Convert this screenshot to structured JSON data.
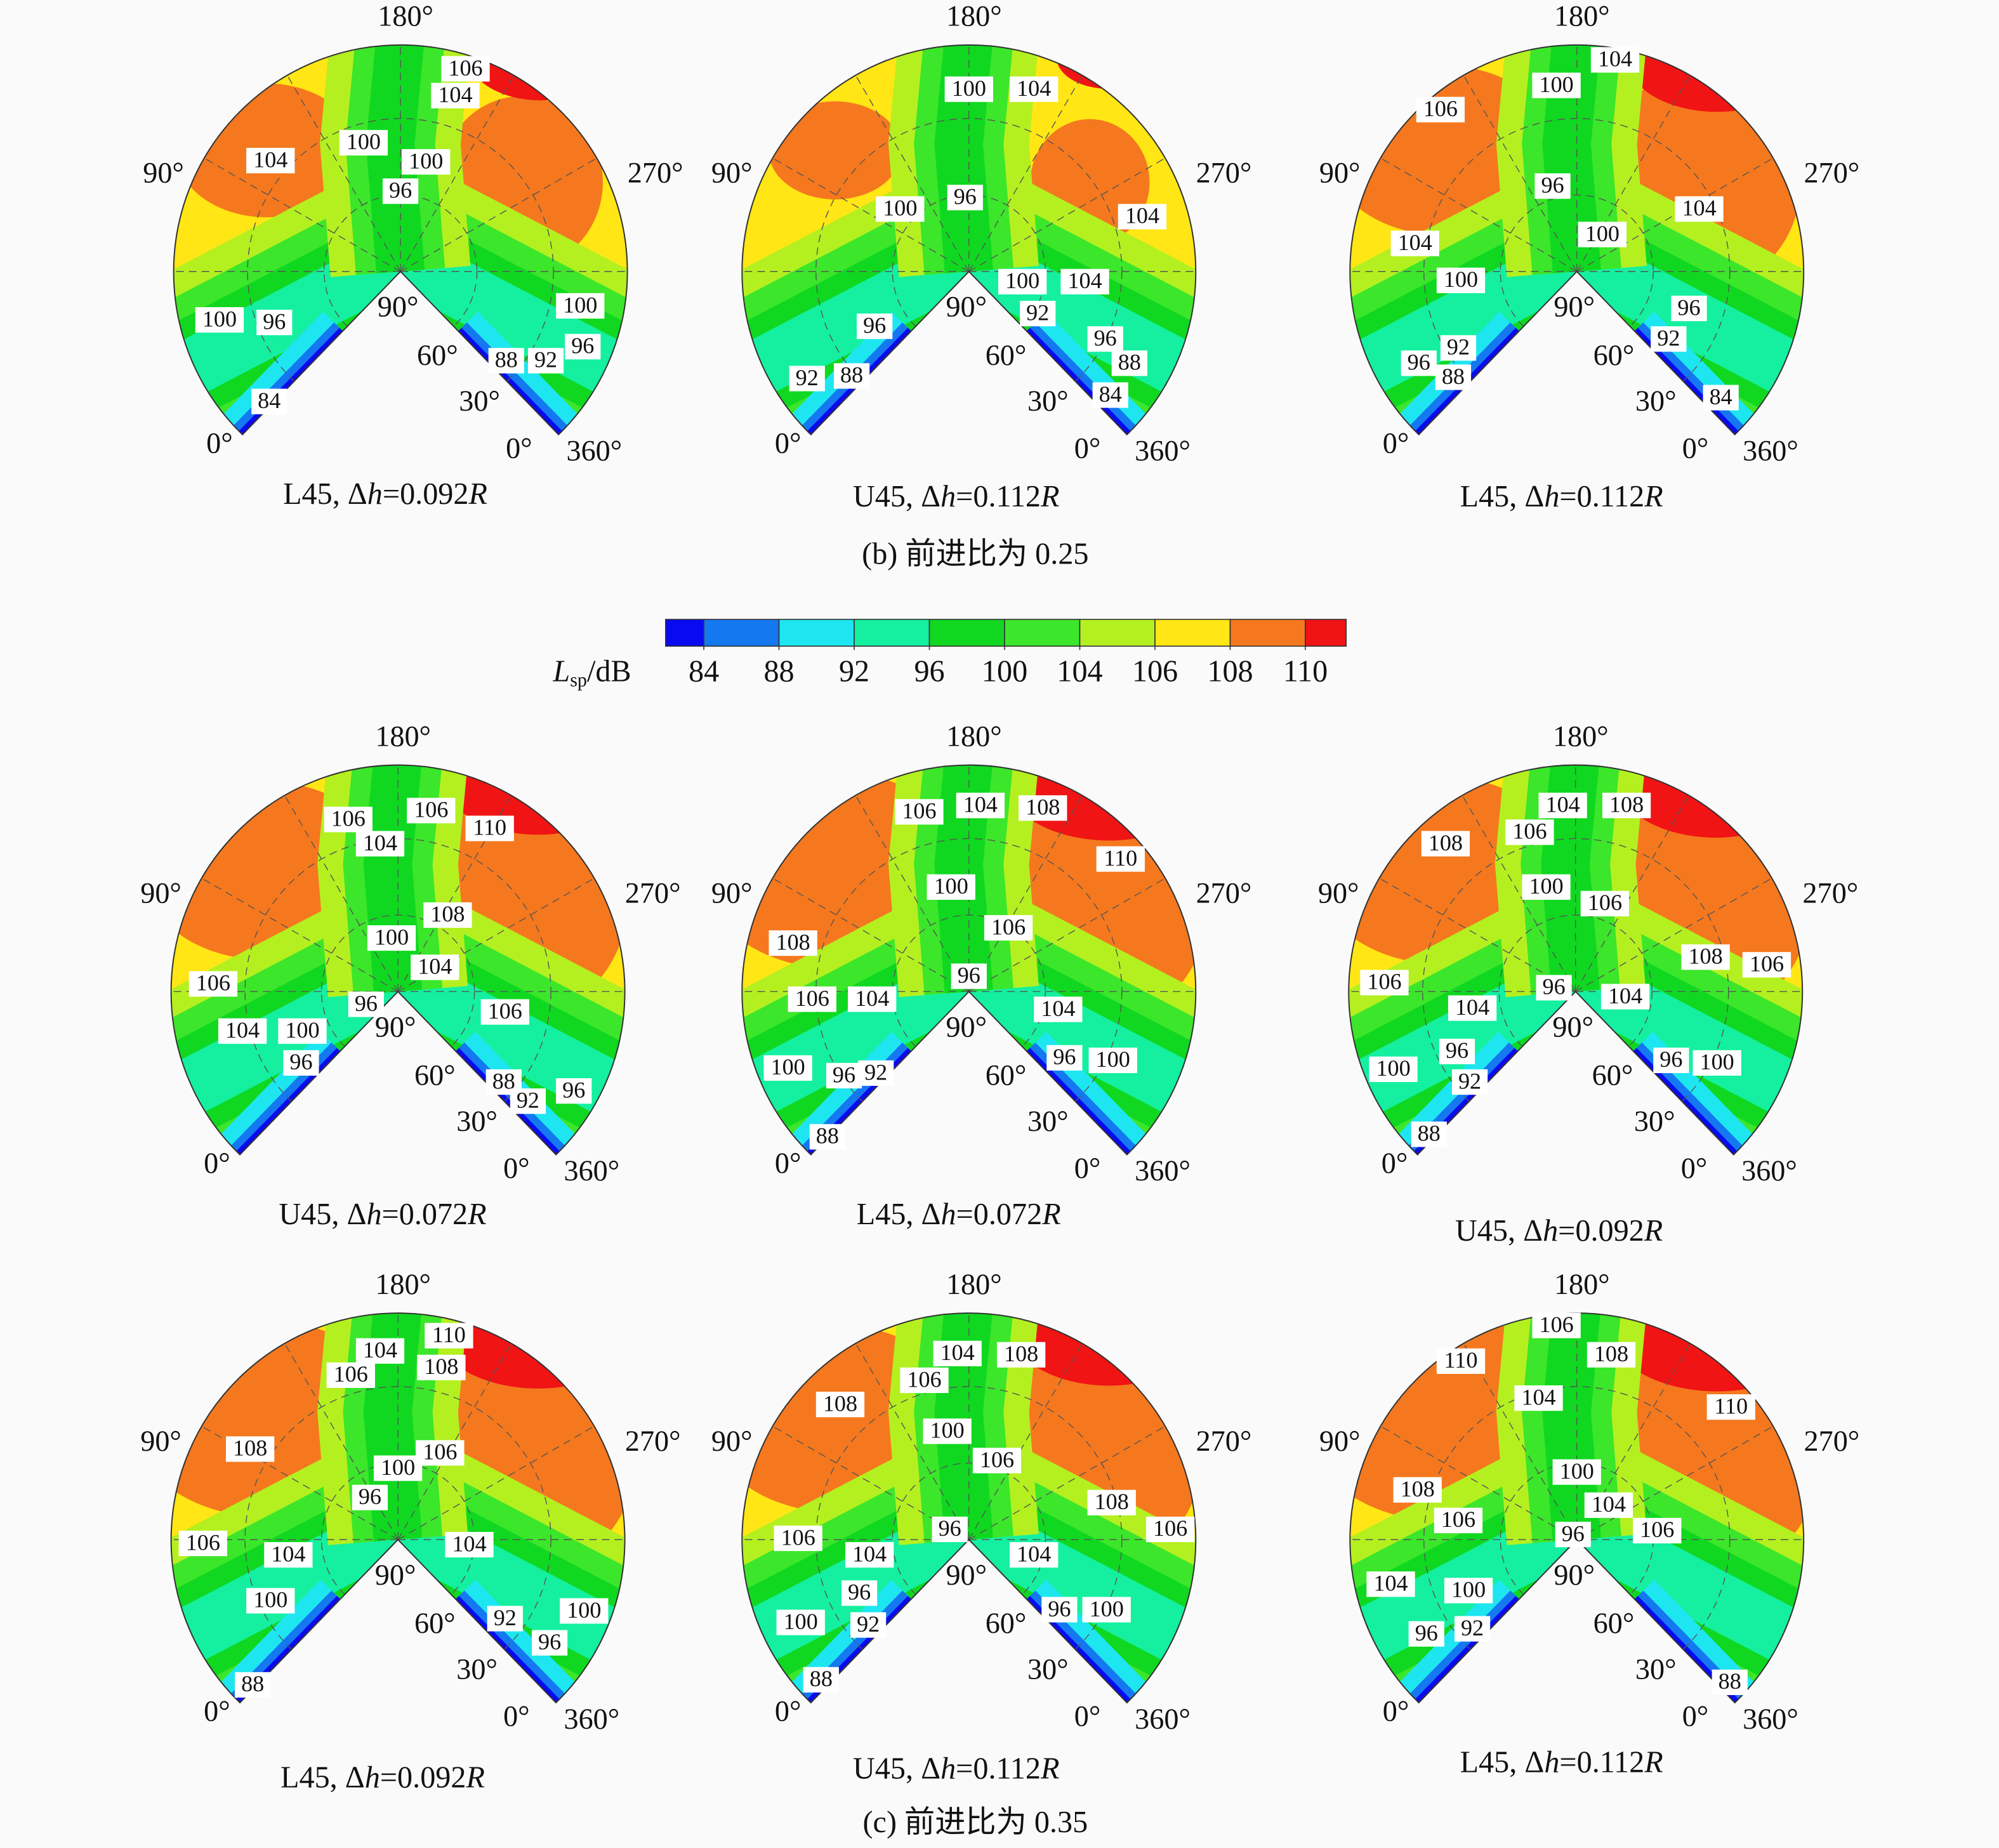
{
  "angle_labels": [
    "180°",
    "90°",
    "270°",
    "90°",
    "60°",
    "30°",
    "0°",
    "0°",
    "360°"
  ],
  "sections": [
    {
      "caption": "(b) 前进比为 0.25",
      "panels": [
        {
          "title": [
            "L45, Δ",
            "h",
            "=0.092",
            "R"
          ],
          "contour_labels": [
            106,
            104,
            104,
            100,
            100,
            96,
            100,
            96,
            100,
            96,
            88,
            92,
            84
          ]
        },
        {
          "title": [
            "U45, Δ",
            "h",
            "=0.112",
            "R"
          ],
          "contour_labels": [
            100,
            104,
            100,
            96,
            104,
            100,
            104,
            92,
            96,
            96,
            88,
            92,
            88,
            84
          ]
        },
        {
          "title": [
            "L45, Δ",
            "h",
            "=0.112",
            "R"
          ],
          "contour_labels": [
            104,
            100,
            106,
            96,
            104,
            104,
            100,
            100,
            96,
            92,
            92,
            96,
            88,
            84
          ]
        }
      ]
    },
    {
      "caption": "(c) 前进比为 0.35",
      "panels": [
        {
          "title": [
            "U45, Δ",
            "h",
            "=0.072",
            "R"
          ],
          "contour_labels": [
            106,
            106,
            110,
            104,
            108,
            100,
            104,
            106,
            96,
            106,
            104,
            100,
            96,
            88,
            96,
            92
          ]
        },
        {
          "title": [
            "L45, Δ",
            "h",
            "=0.072",
            "R"
          ],
          "contour_labels": [
            106,
            104,
            108,
            110,
            100,
            106,
            108,
            96,
            106,
            104,
            104,
            96,
            100,
            100,
            96,
            92,
            88
          ]
        },
        {
          "title": [
            "U45, Δ",
            "h",
            "=0.092",
            "R"
          ],
          "contour_labels": [
            104,
            108,
            108,
            106,
            100,
            106,
            108,
            106,
            106,
            96,
            104,
            104,
            96,
            92,
            96,
            100,
            100,
            88
          ]
        },
        {
          "title": [
            "L45, Δ",
            "h",
            "=0.092",
            "R"
          ],
          "contour_labels": [
            110,
            104,
            108,
            106,
            108,
            106,
            100,
            96,
            106,
            104,
            104,
            100,
            100,
            92,
            96,
            88
          ]
        },
        {
          "title": [
            "U45, Δ",
            "h",
            "=0.112",
            "R"
          ],
          "contour_labels": [
            104,
            108,
            106,
            108,
            100,
            106,
            108,
            106,
            96,
            106,
            104,
            104,
            96,
            96,
            100,
            100,
            92,
            88
          ]
        },
        {
          "title": [
            "L45, Δ",
            "h",
            "=0.112",
            "R"
          ],
          "contour_labels": [
            106,
            110,
            108,
            104,
            110,
            100,
            104,
            108,
            106,
            96,
            106,
            104,
            100,
            96,
            92,
            88
          ]
        }
      ]
    }
  ],
  "colorbar": {
    "label": [
      "L",
      "sp",
      "/dB"
    ],
    "ticks": [
      84,
      88,
      92,
      96,
      100,
      104,
      106,
      108,
      110
    ],
    "colors": [
      "#0a0af0",
      "#1478f0",
      "#1ee6f0",
      "#14f0a0",
      "#10d820",
      "#3ce62a",
      "#b4f020",
      "#ffe614",
      "#f5781e",
      "#f01414"
    ]
  }
}
